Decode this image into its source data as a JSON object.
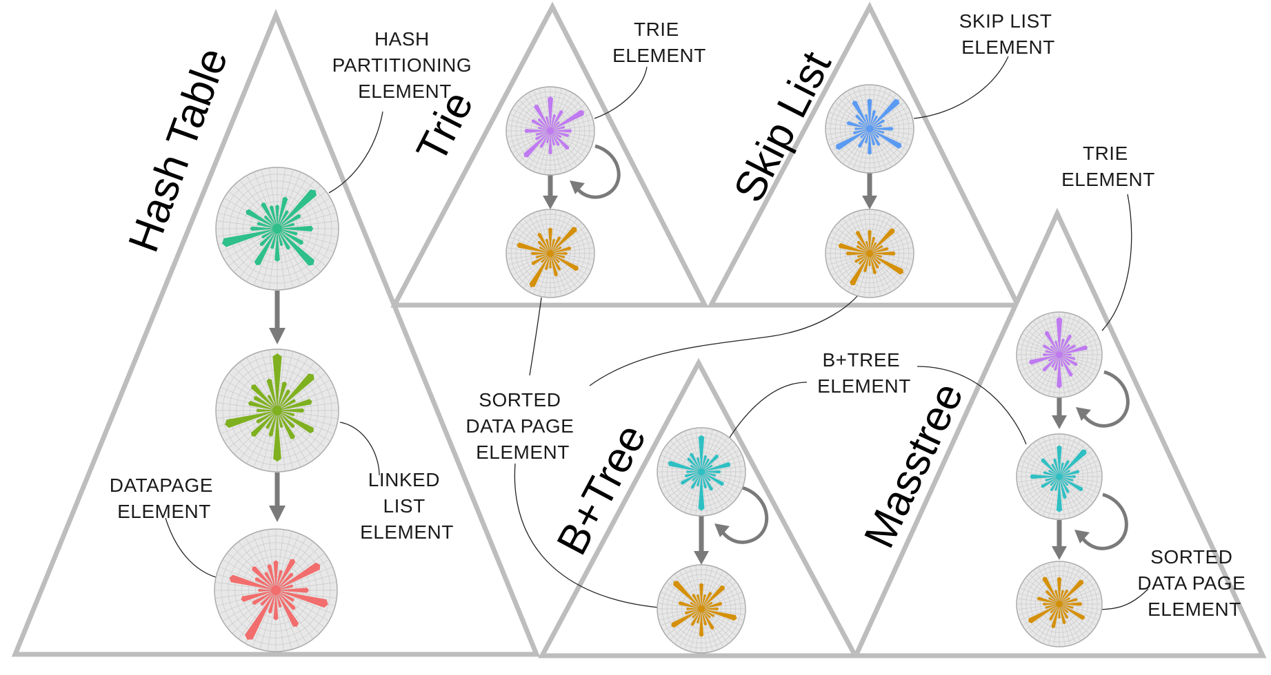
{
  "diagram": {
    "structures": [
      {
        "id": "hash-table",
        "title": "Hash Table"
      },
      {
        "id": "trie",
        "title": "Trie"
      },
      {
        "id": "skip-list",
        "title": "Skip List"
      },
      {
        "id": "b-tree",
        "title": "B+Tree"
      },
      {
        "id": "masstree",
        "title": "Masstree"
      }
    ],
    "labels": {
      "hash_partitioning": [
        "HASH",
        "PARTITIONING",
        "ELEMENT"
      ],
      "linked_list": [
        "LINKED",
        "LIST",
        "ELEMENT"
      ],
      "datapage": [
        "DATAPAGE",
        "ELEMENT"
      ],
      "trie_top": [
        "TRIE",
        "ELEMENT"
      ],
      "skip_list": [
        "SKIP LIST",
        "ELEMENT"
      ],
      "trie_right": [
        "TRIE",
        "ELEMENT"
      ],
      "sorted_center": [
        "SORTED",
        "DATA PAGE",
        "ELEMENT"
      ],
      "btree": [
        "B+TREE",
        "ELEMENT"
      ],
      "sorted_right": [
        "SORTED",
        "DATA PAGE",
        "ELEMENT"
      ]
    },
    "element_colors": {
      "hash_partitioning": "#2ebf8a",
      "linked_list": "#7fb020",
      "datapage": "#f26d6d",
      "trie": "#bf7af0",
      "skip_list": "#5a9af2",
      "sorted_data_page": "#d4900a",
      "btree": "#2fbfc2"
    },
    "glyphs": [
      {
        "id": "ht-partition",
        "element": "hash_partitioning",
        "spikes": [
          0.4,
          0.55,
          0.35,
          0.9,
          0.45,
          0.3,
          0.6,
          0.35,
          0.5,
          0.85,
          0.4,
          0.3,
          0.55,
          0.35,
          0.7,
          0.4,
          0.3,
          0.95,
          0.45,
          0.35,
          0.6,
          0.3,
          0.5,
          0.4
        ]
      },
      {
        "id": "ht-linked",
        "element": "linked_list",
        "spikes": [
          0.95,
          0.5,
          0.4,
          0.85,
          0.35,
          0.6,
          0.45,
          0.3,
          0.7,
          0.4,
          0.55,
          0.3,
          0.85,
          0.45,
          0.35,
          0.6,
          0.4,
          0.9,
          0.35,
          0.5,
          0.45,
          0.6,
          0.3,
          0.55
        ]
      },
      {
        "id": "ht-datapage",
        "element": "datapage",
        "spikes": [
          0.5,
          0.35,
          0.6,
          0.4,
          0.85,
          0.3,
          0.55,
          0.9,
          0.35,
          0.45,
          0.7,
          0.3,
          0.5,
          0.4,
          0.95,
          0.35,
          0.45,
          0.6,
          0.3,
          0.8,
          0.4,
          0.55,
          0.35,
          0.45
        ]
      },
      {
        "id": "trie-top",
        "element": "trie",
        "spikes": [
          0.8,
          0.4,
          0.55,
          0.3,
          0.9,
          0.35,
          0.5,
          0.45,
          0.3,
          0.6,
          0.4,
          0.35,
          0.55,
          0.3,
          0.45,
          0.85,
          0.4,
          0.35,
          0.6,
          0.3,
          0.5,
          0.4,
          0.7,
          0.35
        ]
      },
      {
        "id": "trie-sorted",
        "element": "sorted_data_page",
        "spikes": [
          0.6,
          0.35,
          0.45,
          0.85,
          0.3,
          0.5,
          0.4,
          0.35,
          0.75,
          0.3,
          0.45,
          0.55,
          0.35,
          0.4,
          0.9,
          0.3,
          0.5,
          0.35,
          0.45,
          0.8,
          0.3,
          0.4,
          0.55,
          0.35
        ]
      },
      {
        "id": "sl-top",
        "element": "skip_list",
        "spikes": [
          0.7,
          0.45,
          0.35,
          0.95,
          0.4,
          0.3,
          0.55,
          0.35,
          0.85,
          0.3,
          0.45,
          0.4,
          0.6,
          0.35,
          0.5,
          0.3,
          0.9,
          0.4,
          0.35,
          0.55,
          0.3,
          0.45,
          0.75,
          0.35
        ]
      },
      {
        "id": "sl-sorted",
        "element": "sorted_data_page",
        "spikes": [
          0.55,
          0.4,
          0.3,
          0.8,
          0.35,
          0.45,
          0.6,
          0.3,
          0.9,
          0.35,
          0.4,
          0.5,
          0.3,
          0.45,
          0.85,
          0.35,
          0.4,
          0.3,
          0.55,
          0.75,
          0.35,
          0.4,
          0.6,
          0.3
        ]
      },
      {
        "id": "bt-top",
        "element": "btree",
        "spikes": [
          0.85,
          0.4,
          0.35,
          0.55,
          0.3,
          0.7,
          0.45,
          0.35,
          0.6,
          0.3,
          0.5,
          0.4,
          0.9,
          0.35,
          0.45,
          0.3,
          0.55,
          0.4,
          0.35,
          0.8,
          0.3,
          0.45,
          0.5,
          0.35
        ]
      },
      {
        "id": "bt-sorted",
        "element": "sorted_data_page",
        "spikes": [
          0.6,
          0.35,
          0.45,
          0.75,
          0.3,
          0.5,
          0.4,
          0.85,
          0.35,
          0.3,
          0.55,
          0.4,
          0.65,
          0.35,
          0.45,
          0.3,
          0.8,
          0.4,
          0.35,
          0.55,
          0.3,
          0.9,
          0.4,
          0.35
        ]
      },
      {
        "id": "mt-trie",
        "element": "trie",
        "spikes": [
          0.9,
          0.4,
          0.55,
          0.35,
          0.45,
          0.7,
          0.3,
          0.4,
          0.5,
          0.35,
          0.6,
          0.3,
          0.8,
          0.4,
          0.35,
          0.55,
          0.3,
          0.75,
          0.4,
          0.35,
          0.45,
          0.3,
          0.65,
          0.35
        ]
      },
      {
        "id": "mt-btree",
        "element": "btree",
        "spikes": [
          0.75,
          0.35,
          0.45,
          0.9,
          0.3,
          0.5,
          0.4,
          0.35,
          0.65,
          0.3,
          0.45,
          0.55,
          0.85,
          0.35,
          0.4,
          0.3,
          0.5,
          0.35,
          0.7,
          0.4,
          0.3,
          0.6,
          0.35,
          0.45
        ]
      },
      {
        "id": "mt-sorted",
        "element": "sorted_data_page",
        "spikes": [
          0.65,
          0.35,
          0.4,
          0.8,
          0.3,
          0.45,
          0.55,
          0.35,
          0.7,
          0.3,
          0.4,
          0.5,
          0.35,
          0.6,
          0.45,
          0.3,
          0.85,
          0.35,
          0.4,
          0.55,
          0.3,
          0.45,
          0.75,
          0.35
        ]
      }
    ]
  }
}
